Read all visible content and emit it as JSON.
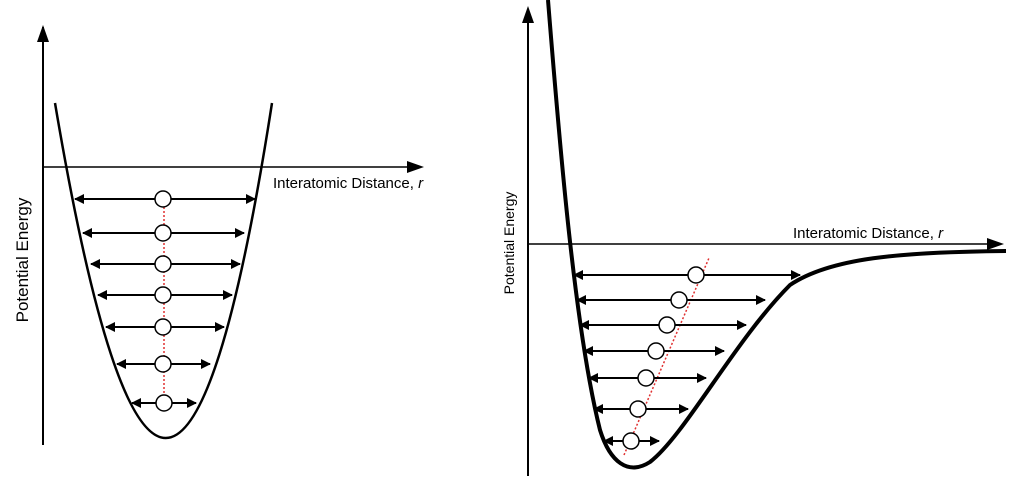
{
  "left_diagram": {
    "y_axis_label": "Potential Energy",
    "x_axis_label": "Interatomic Distance,",
    "x_axis_variable": "r",
    "curve_type": "harmonic",
    "energy_levels": 7,
    "mean_position_trend": "constant"
  },
  "right_diagram": {
    "y_axis_label": "Potential Energy",
    "x_axis_label": "Interatomic Distance,",
    "x_axis_variable": "r",
    "curve_type": "anharmonic",
    "energy_levels": 7,
    "mean_position_trend": "increasing"
  },
  "colors": {
    "line": "#000000",
    "mean_path": "#e03030",
    "marker_fill": "#ffffff"
  }
}
